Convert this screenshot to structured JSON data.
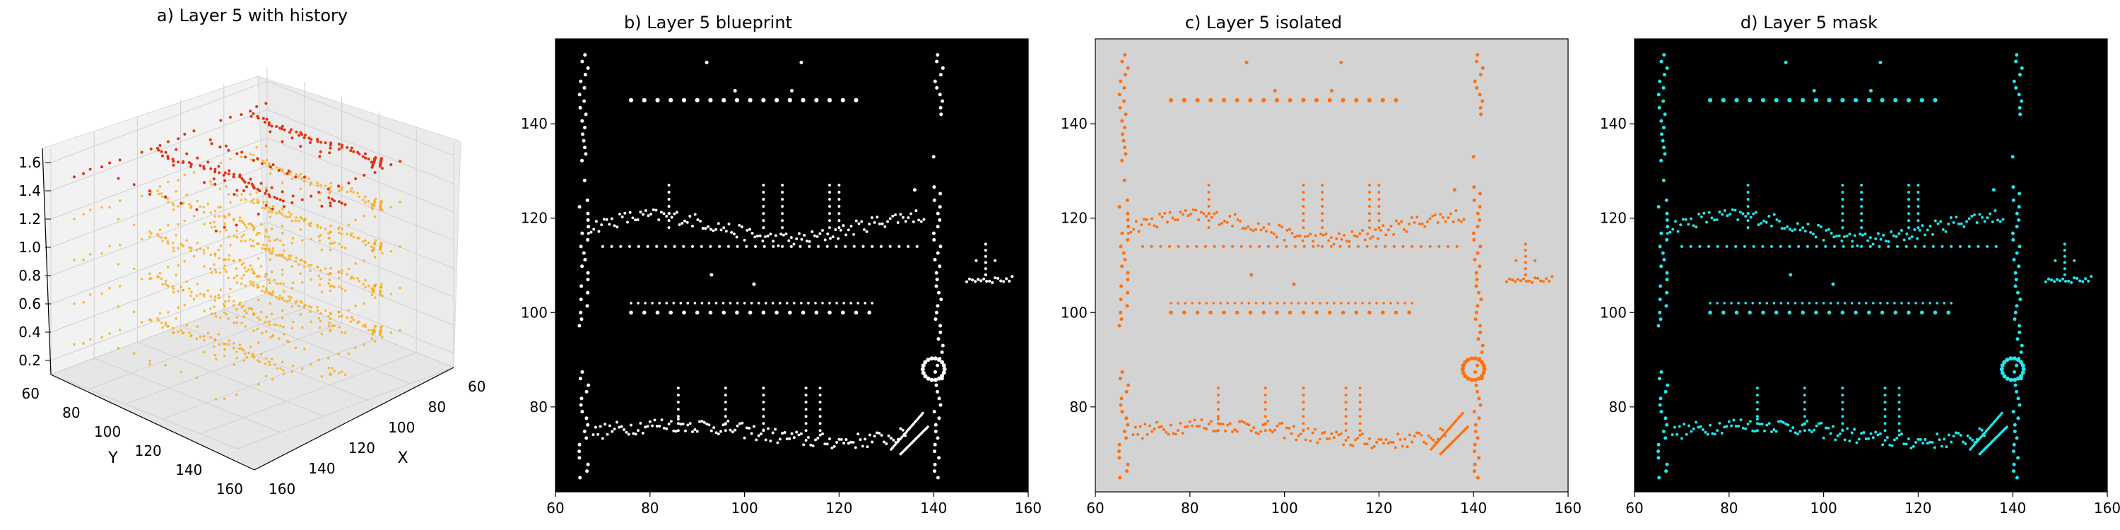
{
  "chart_data": [
    {
      "type": "scatter3d",
      "title": "a) Layer 5 with history",
      "xlabel": "X",
      "ylabel": "Y",
      "zlabel": "",
      "x_ticks": [
        "60",
        "80",
        "100",
        "120",
        "140",
        "160"
      ],
      "y_ticks": [
        "60",
        "80",
        "100",
        "120",
        "140",
        "160"
      ],
      "z_ticks": [
        "0.2",
        "0.4",
        "0.6",
        "0.8",
        "1.0",
        "1.2",
        "1.4",
        "1.6"
      ],
      "xlim": [
        60,
        160
      ],
      "ylim": [
        60,
        160
      ],
      "zlim": [
        0.1,
        1.7
      ],
      "history_layers_z": [
        0.3,
        0.6,
        0.9,
        1.2
      ],
      "current_layer_z": 1.5,
      "colors": {
        "history": "#ffa500",
        "current": "#e8300f",
        "pane": "#f2f2f2",
        "grid": "#d0d0d0"
      },
      "grid": true
    },
    {
      "type": "scatter",
      "title": "b) Layer 5 blueprint",
      "xlim": [
        60,
        160
      ],
      "ylim": [
        62,
        158
      ],
      "x_ticks": [
        60,
        80,
        100,
        120,
        140,
        160
      ],
      "y_ticks": [
        80,
        100,
        120,
        140
      ],
      "colors": {
        "background": "#000000",
        "points": "#ffffff"
      },
      "grid": false
    },
    {
      "type": "scatter",
      "title": "c) Layer 5 isolated",
      "xlim": [
        60,
        160
      ],
      "ylim": [
        62,
        158
      ],
      "x_ticks": [
        60,
        80,
        100,
        120,
        140,
        160
      ],
      "y_ticks": [
        80,
        100,
        120,
        140
      ],
      "colors": {
        "background": "#d3d3d3",
        "points": "#ff7010"
      },
      "grid": false
    },
    {
      "type": "scatter",
      "title": "d) Layer 5 mask",
      "xlim": [
        60,
        160
      ],
      "ylim": [
        62,
        158
      ],
      "x_ticks": [
        60,
        80,
        100,
        120,
        140,
        160
      ],
      "y_ticks": [
        80,
        100,
        120,
        140
      ],
      "colors": {
        "background": "#000000",
        "points": "#1de8f0"
      },
      "grid": false
    }
  ]
}
